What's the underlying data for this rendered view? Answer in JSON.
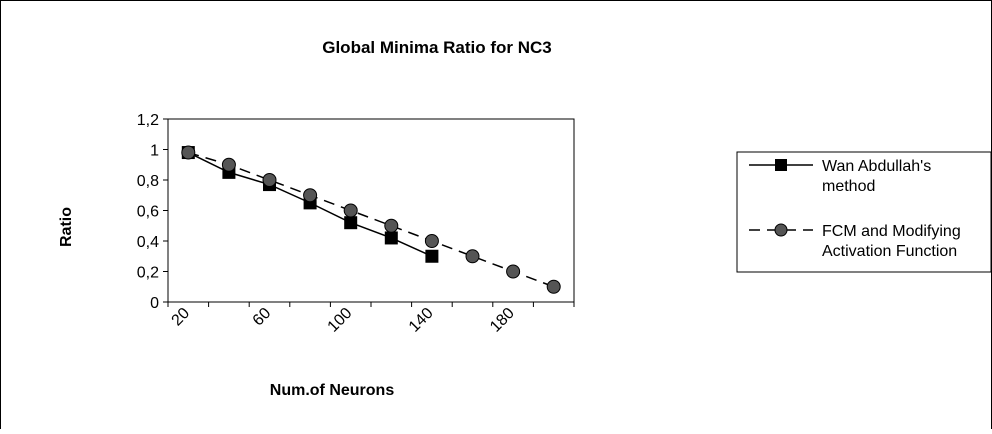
{
  "chart_data": {
    "type": "line",
    "title": "Global Minima Ratio for NC3",
    "xlabel": "Num.of Neurons",
    "ylabel": "Ratio",
    "x": [
      20,
      40,
      60,
      80,
      100,
      120,
      140,
      160,
      180,
      200
    ],
    "x_tick_labels": [
      "20",
      "60",
      "100",
      "140",
      "180"
    ],
    "x_tick_label_values": [
      20,
      60,
      100,
      140,
      180
    ],
    "y_tick_labels": [
      "0",
      "0,2",
      "0,4",
      "0,6",
      "0,8",
      "1",
      "1,2"
    ],
    "ylim": [
      0,
      1.2
    ],
    "legend_position": "right",
    "series": [
      {
        "name": "Wan Abdullah's method",
        "legend_lines": [
          "Wan Abdullah's",
          "method"
        ],
        "marker": "square",
        "line_style": "solid",
        "x": [
          20,
          40,
          60,
          80,
          100,
          120,
          140
        ],
        "values": [
          0.98,
          0.85,
          0.77,
          0.65,
          0.52,
          0.42,
          0.3
        ]
      },
      {
        "name": "FCM and Modifying Activation Function",
        "legend_lines": [
          "FCM and Modifying",
          "Activation Function"
        ],
        "marker": "circle",
        "line_style": "dashed",
        "x": [
          20,
          40,
          60,
          80,
          100,
          120,
          140,
          160,
          180,
          200
        ],
        "values": [
          0.98,
          0.9,
          0.8,
          0.7,
          0.6,
          0.5,
          0.4,
          0.3,
          0.2,
          0.1
        ]
      }
    ],
    "colors": {
      "series_1_marker": "#000000",
      "series_2_marker": "#555555",
      "line": "#000000"
    }
  }
}
